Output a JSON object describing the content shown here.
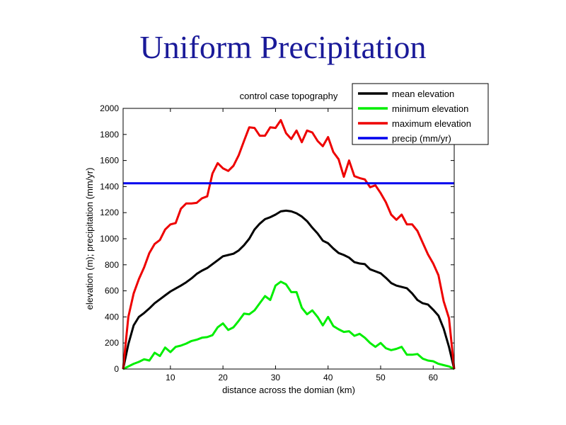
{
  "slide": {
    "title": "Uniform Precipitation"
  },
  "chart_data": {
    "type": "line",
    "title": "control case topography",
    "xlabel": "distance across the domian (km)",
    "ylabel": "elevation (m); precipitation (mm/yr)",
    "xlim": [
      1,
      64
    ],
    "ylim": [
      0,
      2000
    ],
    "xticks": [
      10,
      20,
      30,
      40,
      50,
      60
    ],
    "yticks": [
      0,
      200,
      400,
      600,
      800,
      1000,
      1200,
      1400,
      1600,
      1800,
      2000
    ],
    "grid": false,
    "legend_position": "top-right",
    "series": [
      {
        "name": "mean elevation",
        "color": "#000000",
        "x": [
          1,
          2,
          3,
          4,
          5,
          6,
          7,
          8,
          9,
          10,
          11,
          12,
          13,
          14,
          15,
          16,
          17,
          18,
          19,
          20,
          21,
          22,
          23,
          24,
          25,
          26,
          27,
          28,
          29,
          30,
          31,
          32,
          33,
          34,
          35,
          36,
          37,
          38,
          39,
          40,
          41,
          42,
          43,
          44,
          45,
          46,
          47,
          48,
          49,
          50,
          51,
          52,
          53,
          54,
          55,
          56,
          57,
          58,
          59,
          60,
          61,
          62,
          63,
          64
        ],
        "y": [
          0,
          190,
          335,
          400,
          430,
          465,
          505,
          535,
          565,
          595,
          618,
          640,
          665,
          695,
          730,
          755,
          775,
          805,
          835,
          865,
          875,
          885,
          910,
          950,
          1000,
          1070,
          1115,
          1150,
          1165,
          1185,
          1210,
          1215,
          1210,
          1195,
          1170,
          1135,
          1085,
          1040,
          985,
          965,
          925,
          890,
          875,
          855,
          820,
          810,
          805,
          765,
          750,
          735,
          700,
          660,
          640,
          630,
          620,
          580,
          530,
          505,
          495,
          455,
          410,
          310,
          170,
          0
        ]
      },
      {
        "name": "minimum elevation",
        "color": "#00ee00",
        "x": [
          1,
          2,
          3,
          4,
          5,
          6,
          7,
          8,
          9,
          10,
          11,
          12,
          13,
          14,
          15,
          16,
          17,
          18,
          19,
          20,
          21,
          22,
          23,
          24,
          25,
          26,
          27,
          28,
          29,
          30,
          31,
          32,
          33,
          34,
          35,
          36,
          37,
          38,
          39,
          40,
          41,
          42,
          43,
          44,
          45,
          46,
          47,
          48,
          49,
          50,
          51,
          52,
          53,
          54,
          55,
          56,
          57,
          58,
          59,
          60,
          61,
          62,
          63,
          64
        ],
        "y": [
          0,
          20,
          40,
          55,
          75,
          65,
          125,
          100,
          165,
          130,
          170,
          180,
          195,
          215,
          225,
          240,
          245,
          260,
          320,
          350,
          300,
          320,
          370,
          425,
          420,
          450,
          505,
          560,
          530,
          640,
          670,
          650,
          590,
          590,
          470,
          420,
          450,
          400,
          335,
          400,
          330,
          305,
          285,
          290,
          255,
          270,
          240,
          200,
          170,
          200,
          160,
          145,
          155,
          170,
          110,
          110,
          115,
          80,
          65,
          60,
          40,
          30,
          20,
          0
        ]
      },
      {
        "name": "maximum elevation",
        "color": "#ee0000",
        "x": [
          1,
          2,
          3,
          4,
          5,
          6,
          7,
          8,
          9,
          10,
          11,
          12,
          13,
          14,
          15,
          16,
          17,
          18,
          19,
          20,
          21,
          22,
          23,
          24,
          25,
          26,
          27,
          28,
          29,
          30,
          31,
          32,
          33,
          34,
          35,
          36,
          37,
          38,
          39,
          40,
          41,
          42,
          43,
          44,
          45,
          46,
          47,
          48,
          49,
          50,
          51,
          52,
          53,
          54,
          55,
          56,
          57,
          58,
          59,
          60,
          61,
          62,
          63,
          64
        ],
        "y": [
          0,
          400,
          580,
          690,
          780,
          890,
          960,
          990,
          1070,
          1110,
          1120,
          1230,
          1270,
          1270,
          1275,
          1310,
          1325,
          1500,
          1580,
          1540,
          1520,
          1560,
          1640,
          1750,
          1855,
          1850,
          1790,
          1790,
          1855,
          1850,
          1910,
          1810,
          1765,
          1830,
          1740,
          1830,
          1815,
          1750,
          1710,
          1780,
          1665,
          1610,
          1475,
          1600,
          1480,
          1465,
          1455,
          1395,
          1410,
          1350,
          1280,
          1185,
          1145,
          1185,
          1110,
          1110,
          1060,
          970,
          880,
          810,
          720,
          520,
          390,
          0
        ]
      },
      {
        "name": "precip (mm/yr)",
        "color": "#0000ee",
        "x": [
          1,
          64
        ],
        "y": [
          1425,
          1425
        ]
      }
    ]
  }
}
